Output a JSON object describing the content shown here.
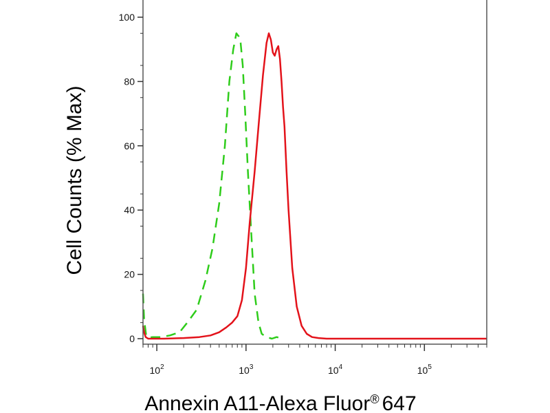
{
  "chart_data": {
    "type": "line",
    "title": "",
    "xlabel": "Annexin A11-Alexa Fluor",
    "xlabel_superscript": "®",
    "xlabel_suffix": "647",
    "ylabel": "Cell Counts (% Max)",
    "x_scale": "log",
    "xlim": [
      70,
      500000
    ],
    "ylim": [
      0,
      100
    ],
    "grid": false,
    "legend": "none",
    "y_ticks": [
      {
        "value": 0,
        "label": "0"
      },
      {
        "value": 20,
        "label": "20"
      },
      {
        "value": 40,
        "label": "40"
      },
      {
        "value": 60,
        "label": "60"
      },
      {
        "value": 80,
        "label": "80"
      },
      {
        "value": 100,
        "label": "100"
      }
    ],
    "x_ticks": [
      {
        "value": 100,
        "base": "10",
        "exp": "2"
      },
      {
        "value": 1000,
        "base": "10",
        "exp": "3"
      },
      {
        "value": 10000,
        "base": "10",
        "exp": "4"
      },
      {
        "value": 100000,
        "base": "10",
        "exp": "5"
      }
    ],
    "series": [
      {
        "color": "#2ecc1a",
        "line_style": "dashed",
        "x": [
          70,
          72,
          76,
          80,
          90,
          110,
          140,
          180,
          220,
          280,
          350,
          420,
          500,
          580,
          650,
          720,
          780,
          830,
          870,
          920,
          980,
          1050,
          1150,
          1250,
          1380,
          1500,
          1700,
          1950,
          2200,
          2600
        ],
        "y": [
          14,
          6,
          1,
          0.3,
          0.5,
          0.5,
          1,
          2,
          5,
          9,
          18,
          28,
          42,
          60,
          80,
          90,
          95,
          94,
          92,
          85,
          70,
          52,
          32,
          14,
          5,
          1.5,
          0.5,
          0,
          0.5,
          0
        ]
      },
      {
        "color": "#e3121a",
        "line_style": "solid",
        "x": [
          70,
          72,
          75,
          80,
          90,
          120,
          200,
          300,
          400,
          500,
          600,
          700,
          800,
          900,
          1000,
          1100,
          1250,
          1400,
          1550,
          1700,
          1800,
          1900,
          2000,
          2100,
          2200,
          2300,
          2400,
          2500,
          2600,
          2700,
          2850,
          3000,
          3300,
          3700,
          4200,
          4800,
          5500,
          6500,
          8000,
          10000,
          20000,
          50000,
          100000,
          200000,
          500000
        ],
        "y": [
          4,
          2,
          0.5,
          0,
          0,
          0,
          0.2,
          0.5,
          1,
          2,
          3.5,
          5,
          7,
          12,
          22,
          36,
          52,
          68,
          82,
          92,
          95,
          93,
          89,
          88,
          90,
          91,
          87,
          80,
          72,
          66,
          52,
          40,
          22,
          10,
          4,
          1.5,
          0.5,
          0.2,
          0,
          0,
          0,
          0,
          0,
          0,
          0
        ]
      }
    ]
  }
}
